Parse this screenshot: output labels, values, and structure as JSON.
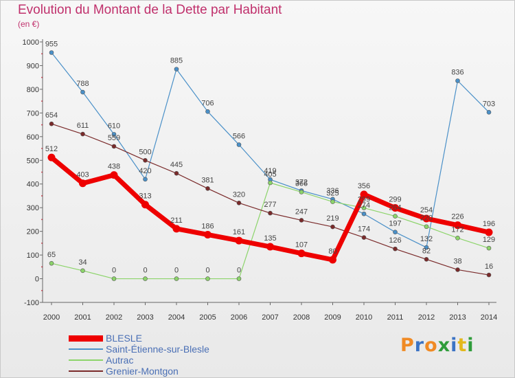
{
  "header": {
    "title": "Evolution du Montant de la Dette par Habitant",
    "subtitle": "(en €)"
  },
  "logo": {
    "text": "Proxiti",
    "colors": [
      "#f08a24",
      "#3b73c4",
      "#f08a24",
      "#2f9c3a",
      "#3b73c4",
      "#e3b81c",
      "#2f9c3a"
    ]
  },
  "chart_data": {
    "type": "line",
    "x": [
      "2000",
      "2001",
      "2002",
      "2003",
      "2004",
      "2005",
      "2006",
      "2007",
      "2008",
      "2009",
      "2010",
      "2011",
      "2012",
      "2013",
      "2014"
    ],
    "ylim": [
      -100,
      1000
    ],
    "yticks": [
      -100,
      0,
      100,
      200,
      300,
      400,
      500,
      600,
      700,
      800,
      900,
      1000
    ],
    "grid": false,
    "legend_position": "bottom-left",
    "series": [
      {
        "name": "Saint-Étienne-sur-Blesle",
        "color": "#4a90c8",
        "width": 1.2,
        "values": [
          955,
          788,
          610,
          420,
          885,
          706,
          566,
          419,
          372,
          336,
          274,
          197,
          132,
          836,
          703
        ],
        "labels": [
          "955",
          "788",
          "610",
          "420",
          "885",
          "706",
          "566",
          "419",
          "372",
          "336",
          "274",
          "197",
          "132",
          "836",
          "703"
        ]
      },
      {
        "name": "Autrac",
        "color": "#8cd46a",
        "width": 1.2,
        "values": [
          65,
          34,
          0,
          0,
          0,
          0,
          0,
          405,
          366,
          325,
          299,
          264,
          220,
          172,
          129
        ],
        "labels": [
          "65",
          "34",
          "0",
          "0",
          "0",
          "0",
          "0",
          "405",
          "366",
          "325",
          "299",
          "264",
          "220",
          "172",
          "129"
        ]
      },
      {
        "name": "Grenier-Montgon",
        "color": "#7a2a2a",
        "width": 1.2,
        "values": [
          654,
          611,
          559,
          500,
          445,
          381,
          320,
          277,
          247,
          219,
          174,
          126,
          82,
          38,
          16
        ],
        "labels": [
          "654",
          "611",
          "559",
          "500",
          "445",
          "381",
          "320",
          "277",
          "247",
          "219",
          "174",
          "126",
          "82",
          "38",
          "16"
        ]
      },
      {
        "name": "BLESLE",
        "color": "#ee0000",
        "width": 7,
        "values": [
          512,
          403,
          438,
          313,
          211,
          186,
          161,
          135,
          107,
          80,
          356,
          299,
          254,
          226,
          196
        ],
        "labels": [
          "512",
          "403",
          "438",
          "313",
          "211",
          "186",
          "161",
          "135",
          "107",
          "80",
          "356",
          "299",
          "254",
          "226",
          "196"
        ]
      }
    ],
    "legend_order": [
      "BLESLE",
      "Saint-Étienne-sur-Blesle",
      "Autrac",
      "Grenier-Montgon"
    ]
  }
}
